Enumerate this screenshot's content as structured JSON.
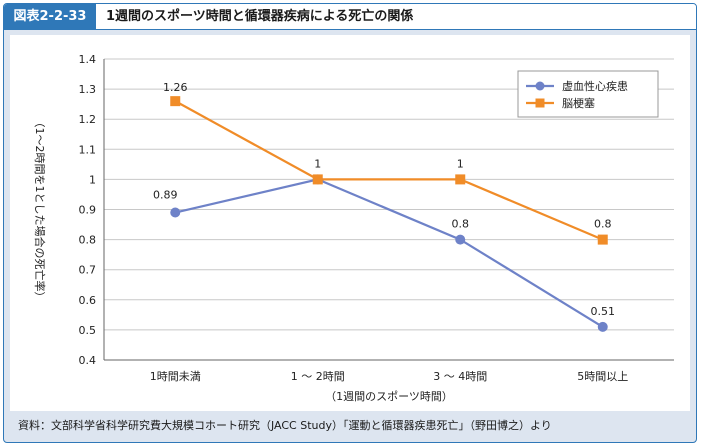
{
  "header": {
    "figure_label": "図表2-2-33",
    "title": "1週間のスポーツ時間と循環器疾病による死亡の関係"
  },
  "source": "資料：文部科学省科学研究費大規模コホート研究（JACC Study）「運動と循環器疾患死亡」（野田博之）より",
  "colors": {
    "frame": "#2f78b8",
    "background": "#dde5f0",
    "series_1": "#6e82c8",
    "series_2": "#f08c28"
  },
  "chart_data": {
    "type": "line",
    "categories": [
      "1時間未満",
      "1 ～ 2時間",
      "3 ～ 4時間",
      "5時間以上"
    ],
    "series": [
      {
        "name": "虚血性心疾患",
        "values": [
          0.89,
          1,
          0.8,
          0.51
        ],
        "labels": [
          "0.89",
          "1",
          "0.8",
          "0.51"
        ],
        "marker": "circle"
      },
      {
        "name": "脳梗塞",
        "values": [
          1.26,
          1,
          1,
          0.8
        ],
        "labels": [
          "1.26",
          "1",
          "1",
          "0.8"
        ],
        "marker": "square"
      }
    ],
    "xlabel": "（1週間のスポーツ時間）",
    "ylabel": "（1～2時間を1とした場合の死亡率）",
    "ylim": [
      0.4,
      1.4
    ],
    "yticks": [
      "0.4",
      "0.5",
      "0.6",
      "0.7",
      "0.8",
      "0.9",
      "1",
      "1.1",
      "1.2",
      "1.3",
      "1.4"
    ],
    "grid": "horizontal",
    "legend_position": "top-right"
  }
}
